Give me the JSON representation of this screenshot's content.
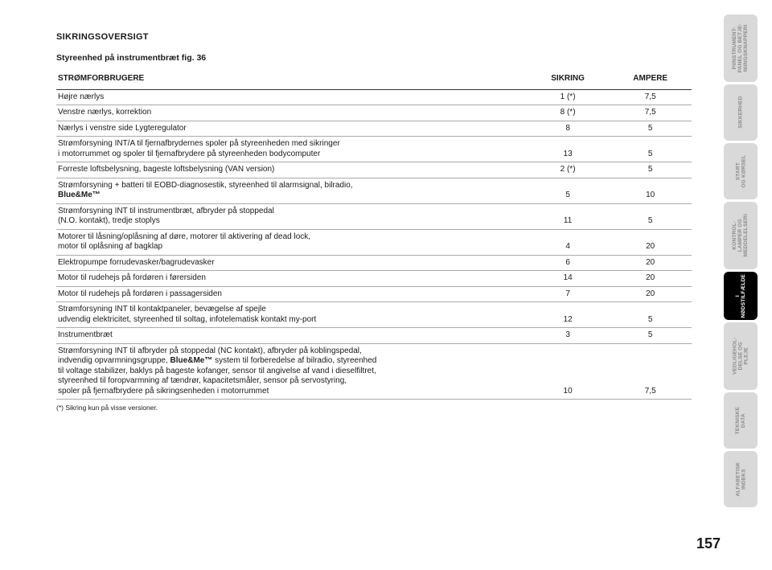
{
  "page": {
    "title": "SIKRINGSOVERSIGT",
    "subtitle": "Styreenhed på instrumentbræt fig. 36",
    "header": {
      "desc": "STRØMFORBRUGERE",
      "sikring": "SIKRING",
      "ampere": "AMPERE"
    },
    "rows": [
      {
        "desc": [
          "Højre nærlys"
        ],
        "sik": "1 (*)",
        "amp": "7,5"
      },
      {
        "desc": [
          "Venstre nærlys, korrektion"
        ],
        "sik": "8 (*)",
        "amp": "7,5"
      },
      {
        "desc": [
          "Nærlys i venstre side Lygteregulator"
        ],
        "sik": "8",
        "amp": "5"
      },
      {
        "desc": [
          "Strømforsyning INT/A til fjernafbrydernes spoler på styreenheden med sikringer",
          "i motorrummet og spoler til fjernafbrydere på styreenheden bodycomputer"
        ],
        "sik": "13",
        "amp": "5"
      },
      {
        "desc": [
          "Forreste loftsbelysning, bageste loftsbelysning (VAN version)"
        ],
        "sik": "2 (*)",
        "amp": "5"
      },
      {
        "desc": [
          "Strømforsyning + batteri til EOBD-diagnosestik, styreenhed til alarmsignal, bilradio,",
          "<b>Blue&Me™</b>"
        ],
        "sik": "5",
        "amp": "10"
      },
      {
        "desc": [
          "Strømforsyning INT til instrumentbræt, afbryder på stoppedal",
          "(N.O. kontakt), tredje stoplys"
        ],
        "sik": "11",
        "amp": "5"
      },
      {
        "desc": [
          "Motorer til låsning/oplåsning af døre, motorer til aktivering af dead lock,",
          "motor til oplåsning af bagklap"
        ],
        "sik": "4",
        "amp": "20"
      },
      {
        "desc": [
          "Elektropumpe forrudevasker/bagrudevasker"
        ],
        "sik": "6",
        "amp": "20"
      },
      {
        "desc": [
          "Motor til rudehejs på fordøren i førersiden"
        ],
        "sik": "14",
        "amp": "20"
      },
      {
        "desc": [
          "Motor til rudehejs på fordøren i passagersiden"
        ],
        "sik": "7",
        "amp": "20"
      },
      {
        "desc": [
          "Strømforsyning INT til kontaktpaneler, bevægelse af spejle",
          "udvendig elektricitet, styreenhed til soltag, infotelematisk kontakt my-port"
        ],
        "sik": "12",
        "amp": "5"
      },
      {
        "desc": [
          "Instrumentbræt"
        ],
        "sik": "3",
        "amp": "5"
      },
      {
        "desc": [
          "Strømforsyning INT til afbryder på stoppedal (NC kontakt), afbryder på koblingspedal,",
          "indvendig opvarmningsgruppe, <b>Blue&Me™</b> system til forberedelse af bilradio, styreenhed",
          "til voltage stabilizer, baklys på bageste kofanger, sensor til angivelse af vand i dieselfiltret,",
          "styreenhed til foropvarmning af tændrør, kapacitetsmåler, sensor på servostyring,",
          "spoler på fjernafbrydere på sikringsenheden i motorrummet"
        ],
        "sik": "10",
        "amp": "7,5"
      }
    ],
    "footnote": "(*) Sikring kun på visse versioner.",
    "pagenum": "157"
  },
  "tabs": [
    {
      "label": "PIINSTRUMENT-\nPANEL OG BETJE-\nNIINGSKNAPPERI",
      "active": false,
      "h": "h-84"
    },
    {
      "label": "SIKKERHED",
      "active": false,
      "h": "h-70"
    },
    {
      "label": "START\nOG KØRSEL",
      "active": false,
      "h": "h-70"
    },
    {
      "label": "KONTROL-\nLAMPER OG\nMEDDELELSERI",
      "active": false,
      "h": "h-84"
    },
    {
      "label": "I\nNØDSTILFÆLDE",
      "active": true,
      "h": "h-60"
    },
    {
      "label": "VEDLIGEHOL-\nDELSE OG\nPLEJE",
      "active": false,
      "h": "h-84"
    },
    {
      "label": "TEKNISKE\nDATA",
      "active": false,
      "h": "h-70"
    },
    {
      "label": "ALFABETISK\nINDEKS",
      "active": false,
      "h": "h-70"
    }
  ],
  "colors": {
    "tab_inactive_bg": "#d9d9d9",
    "tab_inactive_fg": "#8c8c8c",
    "tab_active_bg": "#000000",
    "tab_active_fg": "#ffffff",
    "rule": "#aaaaaa",
    "header_rule": "#333333",
    "text": "#1a1a1a",
    "background": "#ffffff"
  },
  "typography": {
    "body_fontsize_pt": 10,
    "title_fontsize_pt": 11,
    "pagenum_fontsize_pt": 18,
    "footnote_fontsize_pt": 8.5,
    "tab_fontsize_pt": 6.5,
    "font_family": "Arial"
  }
}
